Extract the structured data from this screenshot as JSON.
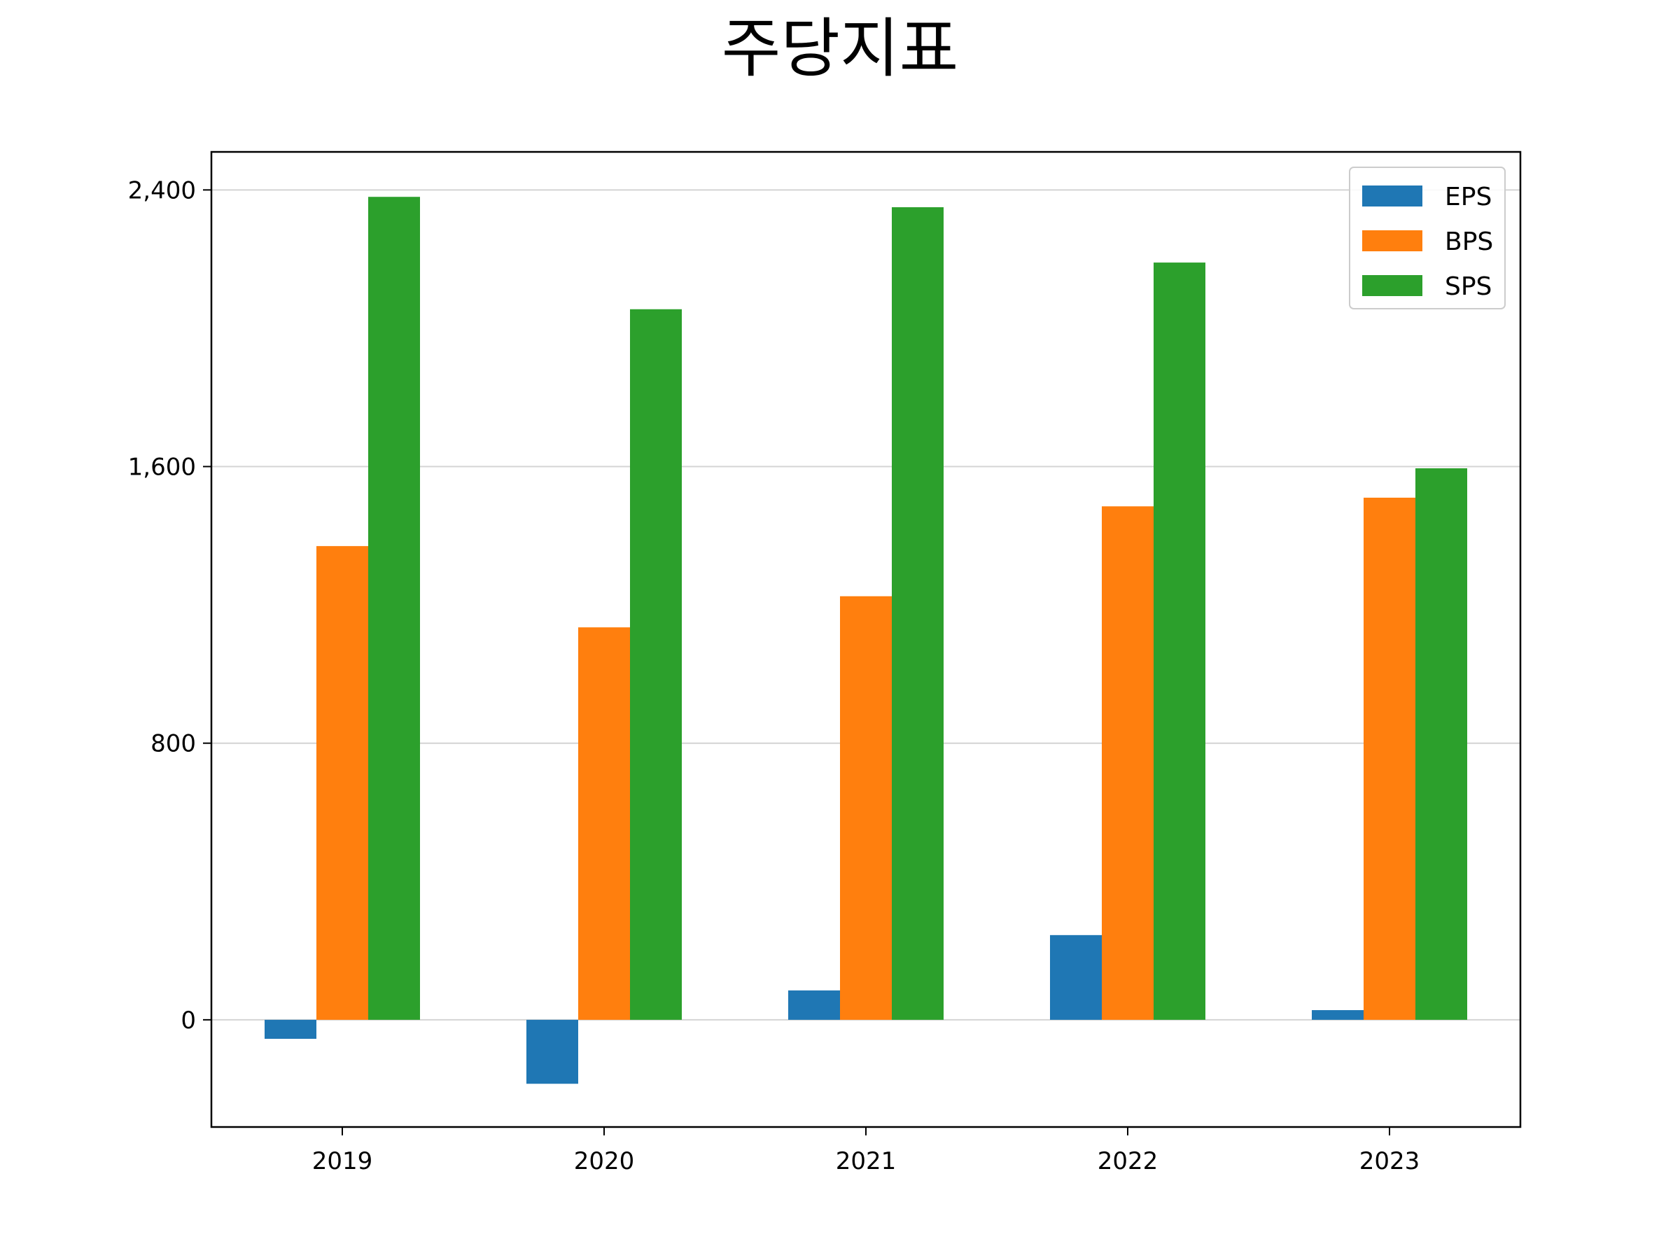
{
  "chart_data": {
    "type": "bar",
    "title": "주당지표",
    "xlabel": "",
    "ylabel": "",
    "categories": [
      "2019",
      "2020",
      "2021",
      "2022",
      "2023"
    ],
    "series": [
      {
        "name": "EPS",
        "color": "#1f77b4",
        "values": [
          -55,
          -185,
          85,
          245,
          28
        ]
      },
      {
        "name": "BPS",
        "color": "#ff7f0e",
        "values": [
          1370,
          1135,
          1225,
          1485,
          1510
        ]
      },
      {
        "name": "SPS",
        "color": "#2ca02c",
        "values": [
          2380,
          2055,
          2350,
          2190,
          1595
        ]
      }
    ],
    "ylim": [
      -310,
      2510
    ],
    "yticks": [
      0,
      800,
      1600,
      2400
    ],
    "ytick_labels": [
      "0",
      "800",
      "1,600",
      "2,400"
    ],
    "grid": "y",
    "legend_position": "top-right"
  }
}
